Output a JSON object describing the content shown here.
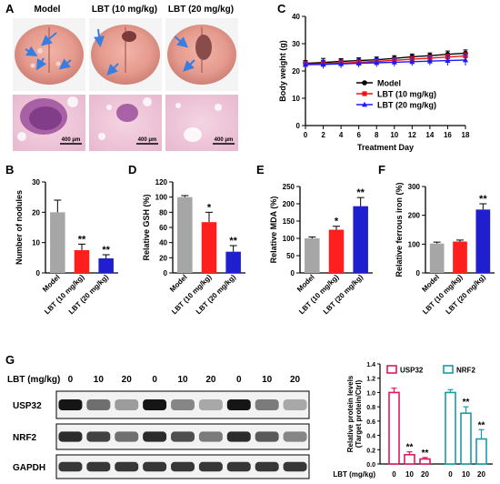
{
  "panel_letters": [
    "A",
    "B",
    "C",
    "D",
    "E",
    "F",
    "G"
  ],
  "panel_a": {
    "columns": [
      "Model",
      "LBT (10 mg/kg)",
      "LBT (20 mg/kg)"
    ],
    "scale_bar": "400 μm"
  },
  "chart_data": [
    {
      "id": "C",
      "type": "line",
      "xlabel": "Treatment Day",
      "ylabel": "Body weight (g)",
      "x": [
        0,
        2,
        4,
        6,
        8,
        10,
        12,
        14,
        16,
        18
      ],
      "xlim": [
        0,
        18
      ],
      "ylim": [
        0,
        40
      ],
      "yticks": [
        0,
        10,
        20,
        30,
        40
      ],
      "legend": "center-right",
      "series": [
        {
          "name": "Model",
          "color": "#000000",
          "marker": "circle",
          "values": [
            22.8,
            23.1,
            23.5,
            23.8,
            24.1,
            24.6,
            25.2,
            25.6,
            26.1,
            26.5
          ],
          "err": [
            1,
            1.5,
            1,
            1,
            1,
            1,
            1,
            1,
            1.2,
            1.2
          ]
        },
        {
          "name": "LBT (10 mg/kg)",
          "color": "#e8141a",
          "marker": "square",
          "values": [
            22.5,
            22.7,
            22.9,
            23.2,
            23.5,
            23.9,
            24.3,
            24.7,
            25.1,
            25.5
          ],
          "err": [
            1,
            1.2,
            1,
            1,
            1,
            1,
            1,
            1,
            1,
            1.2
          ]
        },
        {
          "name": "LBT (20 mg/kg)",
          "color": "#1a1aff",
          "marker": "triangle",
          "values": [
            22.3,
            22.4,
            22.6,
            22.8,
            23.0,
            23.2,
            23.4,
            23.6,
            23.8,
            24.0
          ],
          "err": [
            1,
            1.5,
            1.5,
            1.5,
            1.5,
            1.5,
            1.5,
            1.5,
            1.8,
            2
          ]
        }
      ]
    },
    {
      "id": "B",
      "type": "bar",
      "ylabel": "Number of nodules",
      "categories": [
        "Model",
        "LBT (10 mg/kg)",
        "LBT (20 mg/kg)"
      ],
      "values": [
        20,
        7.5,
        4.8
      ],
      "err": [
        4,
        2,
        1.2
      ],
      "colors": [
        "#a6a6a6",
        "#ff1f1f",
        "#1f1fcf"
      ],
      "significance": [
        "",
        "**",
        "**"
      ],
      "ylim": [
        0,
        30
      ],
      "yticks": [
        0,
        10,
        20,
        30
      ]
    },
    {
      "id": "D",
      "type": "bar",
      "ylabel": "Relative GSH (%)",
      "categories": [
        "Model",
        "LBT (10 mg/kg)",
        "LBT (20 mg/kg)"
      ],
      "values": [
        100,
        67,
        28
      ],
      "err": [
        2,
        13,
        8
      ],
      "colors": [
        "#a6a6a6",
        "#ff1f1f",
        "#1f1fcf"
      ],
      "significance": [
        "",
        "*",
        "**"
      ],
      "ylim": [
        0,
        120
      ],
      "yticks": [
        0,
        20,
        40,
        60,
        80,
        100,
        120
      ]
    },
    {
      "id": "E",
      "type": "bar",
      "ylabel": "Relative MDA (%)",
      "categories": [
        "Model",
        "LBT (10 mg/kg)",
        "LBT (20 mg/kg)"
      ],
      "values": [
        100,
        125,
        193
      ],
      "err": [
        4,
        10,
        25
      ],
      "colors": [
        "#a6a6a6",
        "#ff1f1f",
        "#1f1fcf"
      ],
      "significance": [
        "",
        "*",
        "**"
      ],
      "ylim": [
        0,
        250
      ],
      "yticks": [
        0,
        50,
        100,
        150,
        200,
        250
      ]
    },
    {
      "id": "F",
      "type": "bar",
      "ylabel": "Relative ferrous iron (%)",
      "categories": [
        "Model",
        "LBT (10 mg/kg)",
        "LBT (20 mg/kg)"
      ],
      "values": [
        102,
        109,
        220
      ],
      "err": [
        5,
        5,
        20
      ],
      "colors": [
        "#a6a6a6",
        "#ff1f1f",
        "#1f1fcf"
      ],
      "significance": [
        "",
        "",
        "**"
      ],
      "ylim": [
        0,
        300
      ],
      "yticks": [
        0,
        100,
        200,
        300
      ]
    },
    {
      "id": "G-quant",
      "type": "bar",
      "ylabel": "Relative protein levels",
      "ylabel2": "(Target protein/Ctrl)",
      "xlabel": "LBT (mg/kg)",
      "groups": [
        {
          "name": "USP32",
          "color": "#e0195a",
          "categories": [
            "0",
            "10",
            "20"
          ],
          "values": [
            1.0,
            0.13,
            0.07
          ],
          "err": [
            0.06,
            0.04,
            0.02
          ],
          "significance": [
            "",
            "**",
            "**"
          ]
        },
        {
          "name": "NRF2",
          "color": "#1a9aa6",
          "categories": [
            "0",
            "10",
            "20"
          ],
          "values": [
            1.0,
            0.71,
            0.35
          ],
          "err": [
            0.04,
            0.09,
            0.13
          ],
          "significance": [
            "",
            "**",
            "**"
          ]
        }
      ],
      "ylim": [
        0,
        1.4
      ],
      "yticks": [
        0.0,
        0.2,
        0.4,
        0.6,
        0.8,
        1.0,
        1.2,
        1.4
      ],
      "legend": "top"
    }
  ],
  "western_blot": {
    "dose_label": "LBT (mg/kg)",
    "lanes": [
      "0",
      "10",
      "20",
      "0",
      "10",
      "20",
      "0",
      "10",
      "20"
    ],
    "bands": [
      {
        "name": "USP32",
        "intensities": [
          0.95,
          0.55,
          0.35,
          0.95,
          0.45,
          0.3,
          0.95,
          0.5,
          0.3
        ]
      },
      {
        "name": "NRF2",
        "intensities": [
          0.85,
          0.75,
          0.55,
          0.85,
          0.7,
          0.5,
          0.85,
          0.65,
          0.45
        ]
      },
      {
        "name": "GAPDH",
        "intensities": [
          0.8,
          0.8,
          0.8,
          0.8,
          0.8,
          0.8,
          0.8,
          0.8,
          0.8
        ]
      }
    ]
  }
}
